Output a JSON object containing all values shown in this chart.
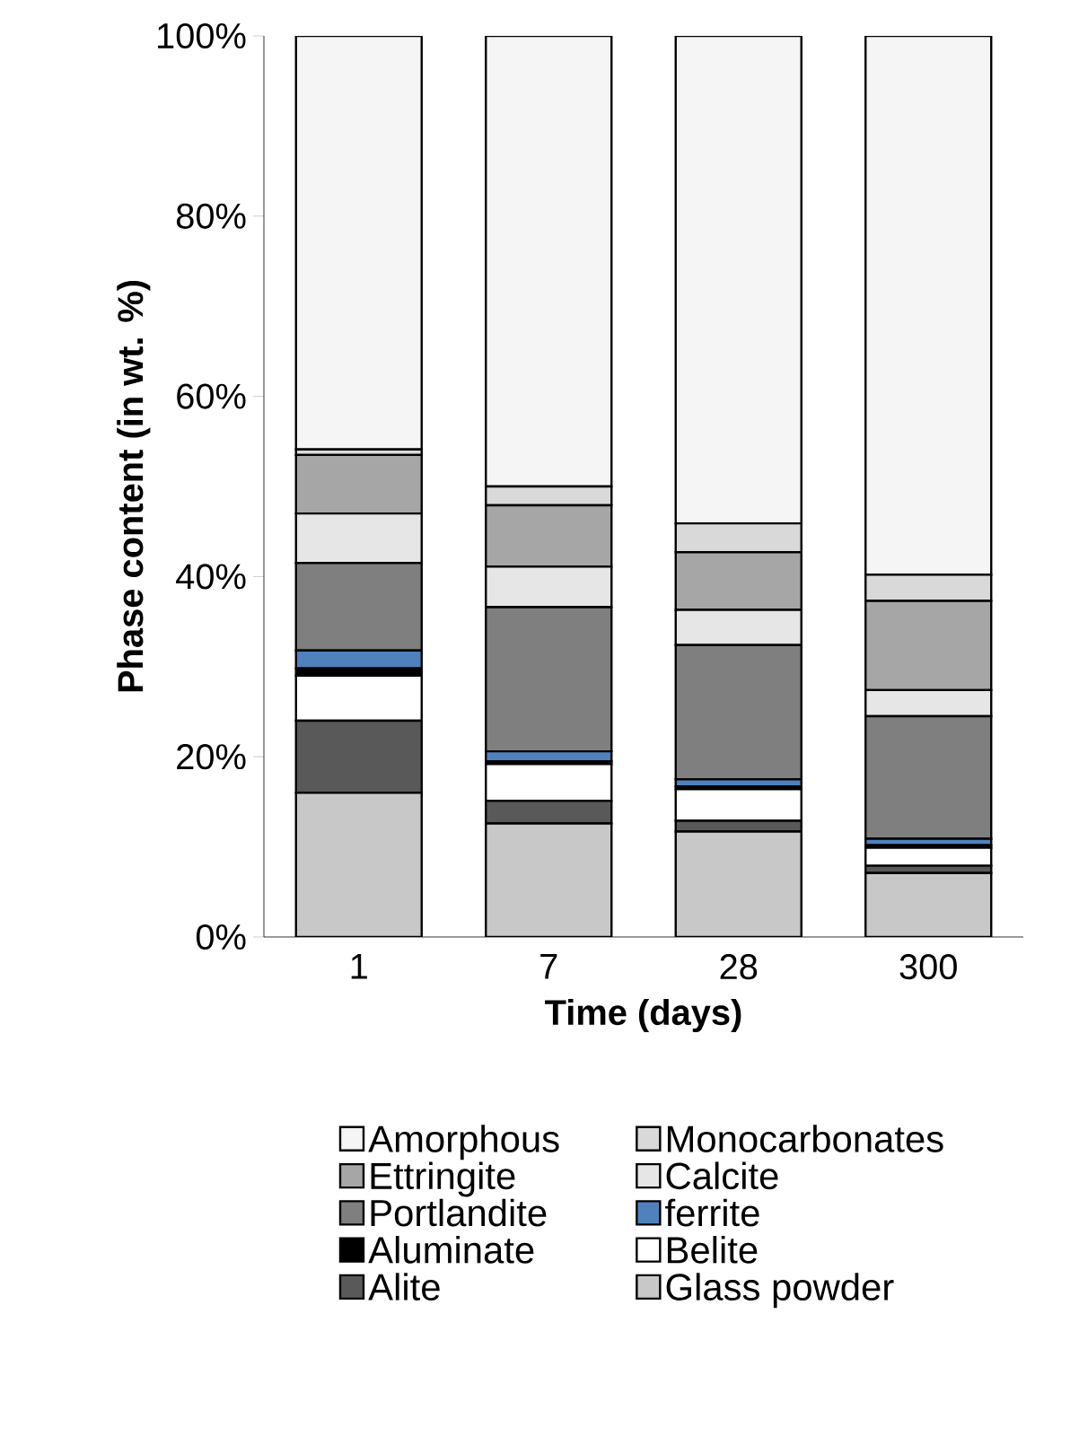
{
  "chart_data": {
    "type": "bar",
    "stacked": true,
    "xlabel": "Time (days)",
    "ylabel": "Phase content (in wt. %)",
    "categories": [
      "1",
      "7",
      "28",
      "300"
    ],
    "ylim": [
      0,
      100
    ],
    "yticks": [
      {
        "value": 0,
        "label": "0%"
      },
      {
        "value": 20,
        "label": "20%"
      },
      {
        "value": 40,
        "label": "40%"
      },
      {
        "value": 60,
        "label": "60%"
      },
      {
        "value": 80,
        "label": "80%"
      },
      {
        "value": 100,
        "label": "100%"
      }
    ],
    "grid": false,
    "legend": "bottom",
    "series": [
      {
        "name": "Glass powder",
        "color": "#c8c8c8",
        "values": [
          16,
          12.6,
          11.7,
          7.1
        ]
      },
      {
        "name": "Alite",
        "color": "#595959",
        "values": [
          8,
          2.5,
          1.2,
          0.8
        ]
      },
      {
        "name": "Belite",
        "color": "#ffffff",
        "values": [
          5,
          4.1,
          3.5,
          2.0
        ]
      },
      {
        "name": "Aluminate",
        "color": "#000000",
        "values": [
          0.8,
          0.3,
          0.3,
          0.3
        ]
      },
      {
        "name": "ferrite",
        "color": "#4f81bd",
        "values": [
          2.0,
          1.1,
          0.8,
          0.7
        ]
      },
      {
        "name": "Portlandite",
        "color": "#7f7f7f",
        "values": [
          9.7,
          16.0,
          14.9,
          13.6
        ]
      },
      {
        "name": "Calcite",
        "color": "#e6e6e6",
        "values": [
          5.5,
          4.5,
          3.9,
          2.9
        ]
      },
      {
        "name": "Ettringite",
        "color": "#a6a6a6",
        "values": [
          6.5,
          6.8,
          6.4,
          9.9
        ]
      },
      {
        "name": "Monocarbonates",
        "color": "#d9d9d9",
        "values": [
          0.6,
          2.1,
          3.2,
          2.9
        ]
      },
      {
        "name": "Amorphous",
        "color": "#f5f5f5",
        "values": [
          45.9,
          50.0,
          54.1,
          59.8
        ]
      }
    ]
  }
}
